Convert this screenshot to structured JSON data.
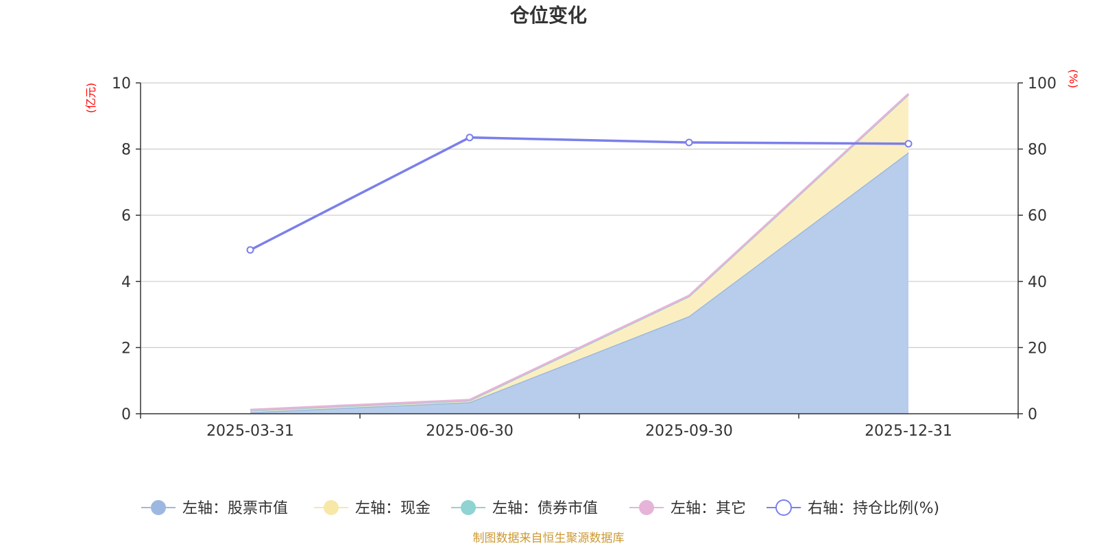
{
  "chart_data": {
    "type": "area",
    "title": "仓位变化",
    "categories": [
      "2025-03-31",
      "2025-06-30",
      "2025-09-30",
      "2025-12-31"
    ],
    "left_axis": {
      "unit": "(亿元)",
      "ylim": [
        0,
        10
      ],
      "ticks": [
        0,
        2,
        4,
        6,
        8,
        10
      ]
    },
    "right_axis": {
      "unit": "(%)",
      "ylim": [
        0,
        100
      ],
      "ticks": [
        0,
        20,
        40,
        60,
        80,
        100
      ]
    },
    "series": [
      {
        "name": "左轴：股票市值",
        "axis": "left",
        "stack": true,
        "values": [
          0.05,
          0.35,
          2.95,
          7.9
        ],
        "color": "#9db8e0",
        "fill": "#b7cdeb"
      },
      {
        "name": "左轴：现金",
        "axis": "left",
        "stack": true,
        "values": [
          0.05,
          0.05,
          0.6,
          1.75
        ],
        "color": "#f7e8a8",
        "fill": "#fbefc2"
      },
      {
        "name": "左轴：债券市值",
        "axis": "left",
        "stack": true,
        "values": [
          0,
          0,
          0,
          0
        ],
        "color": "#8fd3d3",
        "fill": "#8fd3d3"
      },
      {
        "name": "左轴：其它",
        "axis": "left",
        "stack": true,
        "values": [
          0.02,
          0.02,
          0.02,
          0.02
        ],
        "color": "#e6b4d8",
        "fill": "#e6b4d8"
      },
      {
        "name": "右轴：持仓比例(%)",
        "axis": "right",
        "stack": false,
        "values": [
          49.5,
          83.5,
          82.0,
          81.6
        ],
        "color": "#7b7fea"
      }
    ],
    "grid": true,
    "legend_position": "bottom",
    "source": "制图数据来自恒生聚源数据库"
  }
}
